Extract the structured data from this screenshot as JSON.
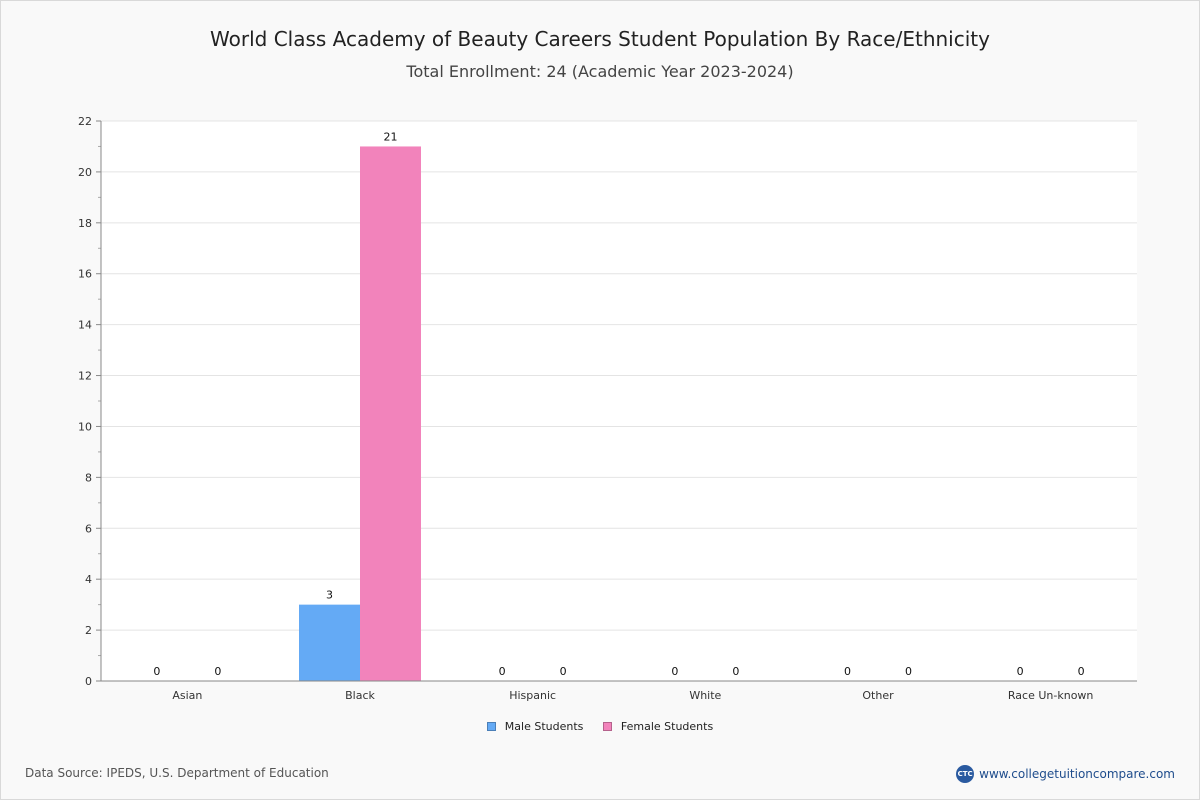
{
  "chart_data": {
    "type": "bar",
    "title": "World Class Academy of Beauty Careers Student Population By Race/Ethnicity",
    "subtitle": "Total Enrollment: 24 (Academic Year 2023-2024)",
    "categories": [
      "Asian",
      "Black",
      "Hispanic",
      "White",
      "Other",
      "Race Un-known"
    ],
    "series": [
      {
        "name": "Male Students",
        "values": [
          0,
          3,
          0,
          0,
          0,
          0
        ],
        "color": "#64aaf5"
      },
      {
        "name": "Female Students",
        "values": [
          0,
          21,
          0,
          0,
          0,
          0
        ],
        "color": "#f283bb"
      }
    ],
    "ylim": [
      0,
      22
    ],
    "yticks": [
      0,
      2,
      4,
      6,
      8,
      10,
      12,
      14,
      16,
      18,
      20,
      22
    ],
    "grid": true,
    "legend_position": "bottom-center"
  },
  "footer": {
    "source": "Data Source: IPEDS, U.S. Department of Education",
    "brand": "www.collegetuitioncompare.com",
    "brand_logo_text": "CTC"
  }
}
